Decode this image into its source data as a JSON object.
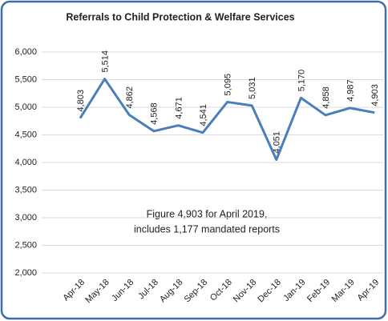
{
  "chart_data": {
    "type": "line",
    "title": "Referrals to Child Protection & Welfare Services",
    "categories": [
      "Apr-18",
      "May-18",
      "Jun-18",
      "Jul-18",
      "Aug-18",
      "Sep-18",
      "Oct-18",
      "Nov-18",
      "Dec-18",
      "Jan-19",
      "Feb-19",
      "Mar-19",
      "Apr-19"
    ],
    "series": [
      {
        "name": "Referrals",
        "color": "#4a7ebb",
        "values": [
          4803,
          5514,
          4862,
          4568,
          4671,
          4541,
          5095,
          5031,
          4051,
          5170,
          4858,
          4987,
          4903
        ],
        "value_labels": [
          "4,803",
          "5,514",
          "4,862",
          "4,568",
          "4,671",
          "4,541",
          "5,095",
          "5,031",
          "4,051",
          "5,170",
          "4,858",
          "4,987",
          "4,903"
        ]
      }
    ],
    "ylim": [
      2000,
      6000
    ],
    "yticks": [
      {
        "value": 2000,
        "label": "2,000"
      },
      {
        "value": 2500,
        "label": "2,500"
      },
      {
        "value": 3000,
        "label": "3,000"
      },
      {
        "value": 3500,
        "label": "3,500"
      },
      {
        "value": 4000,
        "label": "4,000"
      },
      {
        "value": 4500,
        "label": "4,500"
      },
      {
        "value": 5000,
        "label": "5,000"
      },
      {
        "value": 5500,
        "label": "5,500"
      },
      {
        "value": 6000,
        "label": "6,000"
      }
    ],
    "grid": true,
    "annotation": [
      "Figure 4,903 for April 2019,",
      "includes 1,177 mandated reports"
    ]
  }
}
